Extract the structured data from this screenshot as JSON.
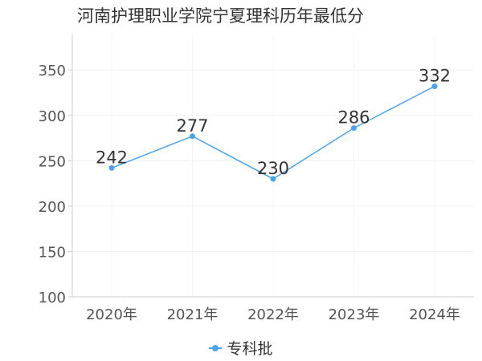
{
  "chart_data": {
    "type": "line",
    "title": "河南护理职业学院宁夏理科历年最低分",
    "categories": [
      "2020年",
      "2021年",
      "2022年",
      "2023年",
      "2024年"
    ],
    "series": [
      {
        "name": "专科批",
        "values": [
          242,
          277,
          230,
          286,
          332
        ],
        "color": "#4aa3f0"
      }
    ],
    "ylim": [
      100,
      390
    ],
    "yticks": [
      100,
      150,
      200,
      250,
      300,
      350
    ],
    "xlabel": "",
    "ylabel": "",
    "grid": true,
    "legend_position": "bottom-center",
    "data_labels": true
  }
}
